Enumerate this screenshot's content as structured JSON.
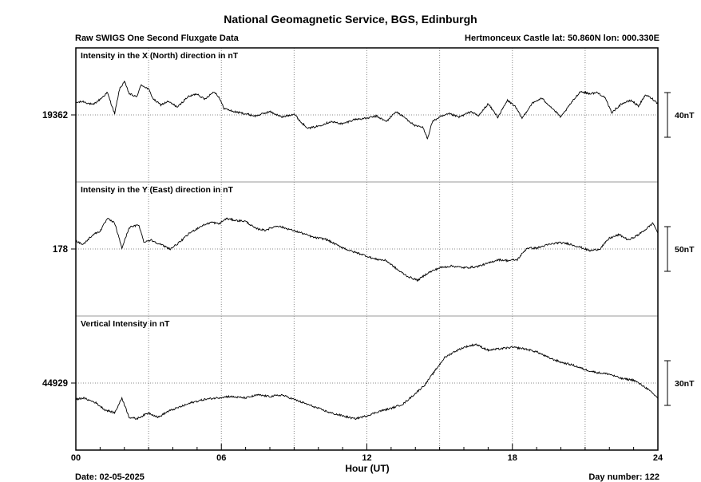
{
  "header": {
    "title": "National Geomagnetic Service, BGS, Edinburgh",
    "subtitle_left": "Raw SWIGS One Second Fluxgate Data",
    "subtitle_right": "Hertmonceux Castle  lat: 50.860N lon: 000.330E"
  },
  "footer": {
    "date": "Date: 02-05-2025",
    "day_number": "Day number:  122"
  },
  "colors": {
    "line": "#000000",
    "grid": "#888888",
    "frame": "#000000",
    "background": "#ffffff"
  },
  "chart_data": {
    "type": "line",
    "xlabel": "Hour (UT)",
    "xlim": [
      0,
      24
    ],
    "x_ticks": [
      0,
      6,
      12,
      18,
      24
    ],
    "x_tick_labels": [
      "00",
      "06",
      "12",
      "18",
      "24"
    ],
    "grid": true,
    "panels": [
      {
        "label": "Intensity in the X (North) direction in nT",
        "center_label": "19362",
        "center_value": 19362,
        "scale_bar": {
          "label": "40nT",
          "value": 40
        },
        "range": [
          19302,
          19422
        ],
        "points": [
          [
            0,
            19373
          ],
          [
            0.3,
            19374
          ],
          [
            0.7,
            19371
          ],
          [
            1.0,
            19376
          ],
          [
            1.3,
            19382
          ],
          [
            1.6,
            19363
          ],
          [
            1.8,
            19385
          ],
          [
            2.0,
            19392
          ],
          [
            2.2,
            19381
          ],
          [
            2.5,
            19378
          ],
          [
            2.7,
            19389
          ],
          [
            3.0,
            19385
          ],
          [
            3.2,
            19376
          ],
          [
            3.5,
            19371
          ],
          [
            3.8,
            19374
          ],
          [
            4.2,
            19369
          ],
          [
            4.6,
            19378
          ],
          [
            5.0,
            19381
          ],
          [
            5.3,
            19376
          ],
          [
            5.7,
            19383
          ],
          [
            5.9,
            19378
          ],
          [
            6.1,
            19368
          ],
          [
            6.5,
            19365
          ],
          [
            7.0,
            19363
          ],
          [
            7.4,
            19361
          ],
          [
            8.0,
            19365
          ],
          [
            8.5,
            19360
          ],
          [
            9.0,
            19363
          ],
          [
            9.3,
            19355
          ],
          [
            9.6,
            19350
          ],
          [
            10.0,
            19352
          ],
          [
            10.5,
            19356
          ],
          [
            11.0,
            19354
          ],
          [
            11.5,
            19358
          ],
          [
            12.0,
            19359
          ],
          [
            12.4,
            19361
          ],
          [
            12.8,
            19356
          ],
          [
            13.2,
            19365
          ],
          [
            13.6,
            19359
          ],
          [
            14.0,
            19352
          ],
          [
            14.3,
            19351
          ],
          [
            14.5,
            19341
          ],
          [
            14.7,
            19356
          ],
          [
            15.0,
            19360
          ],
          [
            15.4,
            19363
          ],
          [
            15.8,
            19360
          ],
          [
            16.3,
            19365
          ],
          [
            16.6,
            19361
          ],
          [
            17.0,
            19372
          ],
          [
            17.4,
            19360
          ],
          [
            17.8,
            19375
          ],
          [
            18.1,
            19370
          ],
          [
            18.4,
            19359
          ],
          [
            18.8,
            19372
          ],
          [
            19.2,
            19377
          ],
          [
            19.6,
            19369
          ],
          [
            20.0,
            19360
          ],
          [
            20.4,
            19372
          ],
          [
            20.8,
            19383
          ],
          [
            21.2,
            19381
          ],
          [
            21.5,
            19382
          ],
          [
            21.8,
            19378
          ],
          [
            22.1,
            19364
          ],
          [
            22.5,
            19372
          ],
          [
            22.9,
            19375
          ],
          [
            23.2,
            19370
          ],
          [
            23.5,
            19380
          ],
          [
            23.8,
            19376
          ],
          [
            24.0,
            19372
          ]
        ]
      },
      {
        "label": "Intensity in the Y (East) direction in nT",
        "center_label": "178",
        "center_value": 178,
        "scale_bar": {
          "label": "50nT",
          "value": 50
        },
        "range": [
          103,
          253
        ],
        "points": [
          [
            0,
            187
          ],
          [
            0.3,
            183
          ],
          [
            0.7,
            194
          ],
          [
            1.0,
            198
          ],
          [
            1.3,
            212
          ],
          [
            1.6,
            207
          ],
          [
            1.9,
            179
          ],
          [
            2.2,
            202
          ],
          [
            2.6,
            205
          ],
          [
            2.8,
            186
          ],
          [
            3.1,
            188
          ],
          [
            3.5,
            183
          ],
          [
            3.9,
            178
          ],
          [
            4.3,
            186
          ],
          [
            4.7,
            196
          ],
          [
            5.2,
            204
          ],
          [
            5.6,
            208
          ],
          [
            5.9,
            206
          ],
          [
            6.2,
            212
          ],
          [
            6.6,
            210
          ],
          [
            7.0,
            209
          ],
          [
            7.4,
            201
          ],
          [
            7.8,
            199
          ],
          [
            8.3,
            204
          ],
          [
            8.8,
            200
          ],
          [
            9.3,
            196
          ],
          [
            9.8,
            191
          ],
          [
            10.3,
            189
          ],
          [
            10.8,
            182
          ],
          [
            11.3,
            176
          ],
          [
            11.8,
            172
          ],
          [
            12.3,
            167
          ],
          [
            12.8,
            165
          ],
          [
            13.3,
            154
          ],
          [
            13.7,
            147
          ],
          [
            14.1,
            143
          ],
          [
            14.5,
            151
          ],
          [
            15.0,
            157
          ],
          [
            15.5,
            159
          ],
          [
            16.0,
            157
          ],
          [
            16.5,
            158
          ],
          [
            17.0,
            162
          ],
          [
            17.4,
            166
          ],
          [
            17.8,
            165
          ],
          [
            18.2,
            166
          ],
          [
            18.6,
            179
          ],
          [
            19.0,
            179
          ],
          [
            19.5,
            183
          ],
          [
            19.9,
            185
          ],
          [
            20.3,
            184
          ],
          [
            20.8,
            180
          ],
          [
            21.2,
            176
          ],
          [
            21.6,
            178
          ],
          [
            22.0,
            190
          ],
          [
            22.4,
            194
          ],
          [
            22.8,
            188
          ],
          [
            23.2,
            194
          ],
          [
            23.5,
            200
          ],
          [
            23.8,
            207
          ],
          [
            24.0,
            196
          ]
        ]
      },
      {
        "label": "Vertical Intensity in nT",
        "center_label": "44929",
        "center_value": 44929,
        "scale_bar": {
          "label": "30nT",
          "value": 30
        },
        "range": [
          44884,
          44974
        ],
        "points": [
          [
            0,
            44918
          ],
          [
            0.3,
            44919
          ],
          [
            0.8,
            44916
          ],
          [
            1.2,
            44911
          ],
          [
            1.6,
            44909
          ],
          [
            1.9,
            44919
          ],
          [
            2.2,
            44906
          ],
          [
            2.5,
            44905
          ],
          [
            3.0,
            44909
          ],
          [
            3.4,
            44906
          ],
          [
            3.8,
            44910
          ],
          [
            4.3,
            44913
          ],
          [
            4.8,
            44916
          ],
          [
            5.3,
            44918
          ],
          [
            5.8,
            44919
          ],
          [
            6.3,
            44920
          ],
          [
            7.0,
            44919
          ],
          [
            7.5,
            44921
          ],
          [
            8.0,
            44920
          ],
          [
            8.5,
            44921
          ],
          [
            9.0,
            44918
          ],
          [
            9.5,
            44915
          ],
          [
            10.0,
            44912
          ],
          [
            10.5,
            44909
          ],
          [
            11.0,
            44907
          ],
          [
            11.5,
            44905
          ],
          [
            12.0,
            44907
          ],
          [
            12.5,
            44910
          ],
          [
            13.0,
            44912
          ],
          [
            13.5,
            44915
          ],
          [
            14.0,
            44922
          ],
          [
            14.4,
            44928
          ],
          [
            14.8,
            44937
          ],
          [
            15.2,
            44946
          ],
          [
            15.6,
            44950
          ],
          [
            16.0,
            44953
          ],
          [
            16.5,
            44955
          ],
          [
            17.0,
            44951
          ],
          [
            17.5,
            44952
          ],
          [
            18.0,
            44953
          ],
          [
            18.5,
            44952
          ],
          [
            19.0,
            44950
          ],
          [
            19.5,
            44946
          ],
          [
            20.0,
            44943
          ],
          [
            20.5,
            44941
          ],
          [
            21.0,
            44938
          ],
          [
            21.5,
            44936
          ],
          [
            22.0,
            44935
          ],
          [
            22.5,
            44932
          ],
          [
            23.0,
            44931
          ],
          [
            23.5,
            44926
          ],
          [
            24.0,
            44919
          ]
        ]
      }
    ]
  }
}
